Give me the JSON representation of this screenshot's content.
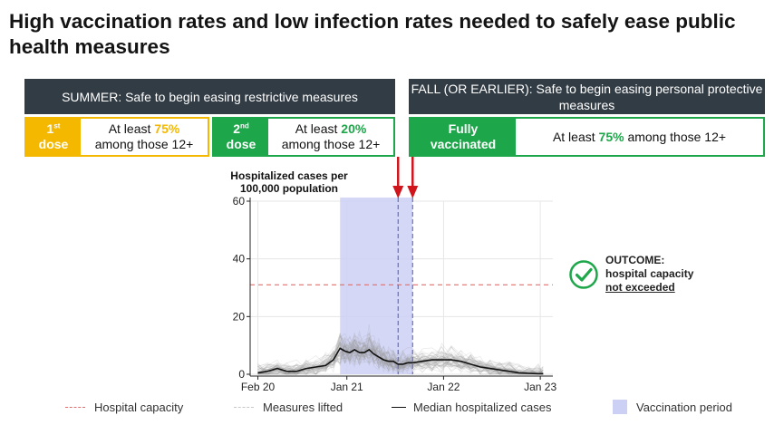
{
  "title": "High vaccination rates and low infection rates needed to safely ease public health measures",
  "headers": {
    "summer": "SUMMER: Safe to begin easing restrictive measures",
    "fall": "FALL (OR EARLIER): Safe to begin easing personal protective measures"
  },
  "boxes": {
    "first": {
      "label_num": "1",
      "label_sup": "st",
      "label_word": "dose",
      "text_pre": "At least ",
      "pct": "75%",
      "text_post": "among those 12+"
    },
    "second": {
      "label_num": "2",
      "label_sup": "nd",
      "label_word": "dose",
      "text_pre": "At least ",
      "pct": "20%",
      "text_post": "among those 12+"
    },
    "full": {
      "label_line1": "Fully",
      "label_line2": "vaccinated",
      "text_pre": "At least ",
      "pct": "75%",
      "text_post": " among those 12+"
    }
  },
  "outcome": {
    "line1": "OUTCOME:",
    "line2": "hospital capacity",
    "line3": "not exceeded"
  },
  "colors": {
    "header_bg": "#323c44",
    "first_dose": "#f5b800",
    "second_dose": "#1ea64a",
    "capacity_line": "#e07070",
    "measures_line": "#5a64c8",
    "arrow": "#d0141c",
    "vaccination_shade": "#ccd0f5"
  },
  "chart_data": {
    "type": "line",
    "ylabel": "Hospitalized cases per 100,000 population",
    "xlabel": "",
    "ylim": [
      0,
      60
    ],
    "yticks": [
      "0",
      "20",
      "40",
      "60"
    ],
    "xlim": [
      -0.08,
      3.05
    ],
    "xticks": [
      {
        "x": 0,
        "label": "Feb 20"
      },
      {
        "x": 0.92,
        "label": "Jan 21"
      },
      {
        "x": 1.92,
        "label": "Jan 22"
      },
      {
        "x": 2.92,
        "label": "Jan 23"
      }
    ],
    "hospital_capacity": 31,
    "measures_lifted": [
      1.45,
      1.6
    ],
    "vaccination_period": [
      0.85,
      1.6
    ],
    "series": [
      {
        "name": "Median hospitalized cases",
        "x": [
          0,
          0.1,
          0.2,
          0.3,
          0.4,
          0.5,
          0.6,
          0.7,
          0.78,
          0.85,
          0.9,
          0.95,
          1.0,
          1.05,
          1.1,
          1.15,
          1.2,
          1.25,
          1.3,
          1.35,
          1.4,
          1.45,
          1.5,
          1.55,
          1.6,
          1.7,
          1.8,
          1.9,
          2.0,
          2.1,
          2.2,
          2.3,
          2.4,
          2.5,
          2.6,
          2.7,
          2.8,
          2.9,
          2.95
        ],
        "y": [
          0.5,
          1,
          2,
          1,
          1,
          2,
          2.5,
          3,
          5,
          9,
          8,
          7.5,
          8.5,
          7.5,
          7.5,
          8.5,
          7,
          6,
          5,
          4.5,
          4.5,
          3.5,
          3.5,
          4,
          4,
          4.5,
          5,
          5,
          5,
          4.5,
          3.5,
          2.5,
          2,
          1.5,
          1,
          0.5,
          0.3,
          0.2,
          0.2
        ]
      }
    ],
    "legend": [
      "Hospital capacity",
      "Measures lifted",
      "Median hospitalized cases",
      "Vaccination period"
    ]
  }
}
